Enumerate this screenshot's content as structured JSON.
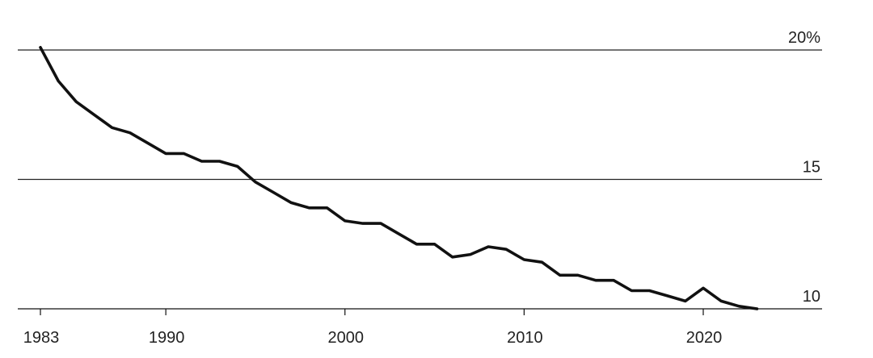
{
  "chart_data": {
    "type": "line",
    "title": "",
    "xlabel": "",
    "ylabel": "",
    "xlim": [
      1983,
      2024
    ],
    "ylim": [
      10,
      20
    ],
    "grid": true,
    "legend": "none",
    "y_ticks": [
      {
        "value": 20,
        "label": "20%"
      },
      {
        "value": 15,
        "label": "15"
      },
      {
        "value": 10,
        "label": "10"
      }
    ],
    "x_ticks": [
      {
        "value": 1983,
        "label": "1983"
      },
      {
        "value": 1990,
        "label": "1990"
      },
      {
        "value": 2000,
        "label": "2000"
      },
      {
        "value": 2010,
        "label": "2010"
      },
      {
        "value": 2020,
        "label": "2020"
      }
    ],
    "series": [
      {
        "color": "#111111",
        "x": [
          1983,
          1984,
          1985,
          1986,
          1987,
          1988,
          1989,
          1990,
          1991,
          1992,
          1993,
          1994,
          1995,
          1996,
          1997,
          1998,
          1999,
          2000,
          2001,
          2002,
          2003,
          2004,
          2005,
          2006,
          2007,
          2008,
          2009,
          2010,
          2011,
          2012,
          2013,
          2014,
          2015,
          2016,
          2017,
          2018,
          2019,
          2020,
          2021,
          2022,
          2023
        ],
        "values": [
          20.1,
          18.8,
          18.0,
          17.5,
          17.0,
          16.8,
          16.4,
          16.0,
          16.0,
          15.7,
          15.7,
          15.5,
          14.9,
          14.5,
          14.1,
          13.9,
          13.9,
          13.4,
          13.3,
          13.3,
          12.9,
          12.5,
          12.5,
          12.0,
          12.1,
          12.4,
          12.3,
          11.9,
          11.8,
          11.3,
          11.3,
          11.1,
          11.1,
          10.7,
          10.7,
          10.5,
          10.3,
          10.8,
          10.3,
          10.1,
          10.0
        ]
      }
    ]
  }
}
